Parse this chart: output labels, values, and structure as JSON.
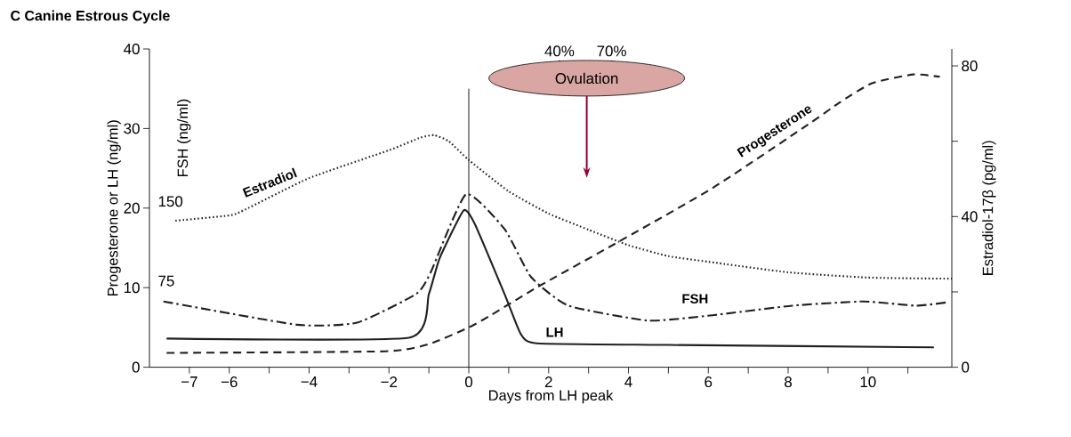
{
  "chart_data": {
    "type": "line",
    "title": "C  Canine Estrous Cycle",
    "xlabel": "Days from LH peak",
    "ylabel": "Progesterone or LH (ng/ml)",
    "y2label": "Estradiol-17β (pg/ml)",
    "y3label": "FSH (ng/ml)",
    "xlim": [
      -8,
      12.1
    ],
    "xticks": [
      {
        "value": -7,
        "label": "−7"
      },
      {
        "value": -6,
        "label": "−6"
      },
      {
        "value": -5,
        "label": null
      },
      {
        "value": -4,
        "label": "−4"
      },
      {
        "value": -3,
        "label": null
      },
      {
        "value": -2,
        "label": "−2"
      },
      {
        "value": -1,
        "label": null
      },
      0,
      {
        "value": 1,
        "label": null
      },
      2,
      {
        "value": 3,
        "label": null
      },
      4,
      {
        "value": 5,
        "label": null
      },
      6,
      {
        "value": 7,
        "label": null
      },
      8,
      {
        "value": 9,
        "label": null
      },
      10,
      {
        "value": 11,
        "label": null
      }
    ],
    "ylim": [
      0,
      40
    ],
    "yticks": [
      0,
      10,
      20,
      30,
      40
    ],
    "y2lim": [
      0,
      84.5
    ],
    "y2ticks": [
      0,
      {
        "value": 20,
        "label": null
      },
      40,
      {
        "value": 60,
        "label": null
      },
      80
    ],
    "y3lim": [
      0,
      300
    ],
    "y3ticks": [
      75,
      150
    ],
    "ref_lines": [
      {
        "axis": "x",
        "value": 0
      }
    ],
    "annotations": [
      "Ovulation",
      "40%",
      "70%"
    ],
    "series": [
      {
        "name": "Estradiol",
        "color": "#231f20",
        "line_style": "dotted",
        "axis": "y2",
        "x": [
          -7.35,
          -6,
          -5.65,
          -4,
          -2,
          -1.2,
          -0.87,
          -0.5,
          0,
          1,
          2,
          3,
          4,
          5,
          6,
          8,
          10,
          12.1
        ],
        "values": [
          38.9,
          40.3,
          41.6,
          50.2,
          57.6,
          61,
          61.6,
          60,
          55,
          46.7,
          40.8,
          36.5,
          32.4,
          29.5,
          28,
          25.2,
          23.8,
          23.5
        ]
      },
      {
        "name": "Progesterone",
        "color": "#231f20",
        "line_style": "dashed",
        "x": [
          -7.57,
          -2.1,
          -1,
          0,
          0.54,
          1.73,
          3.73,
          6.1,
          8.5,
          9.3,
          10.1,
          11.14,
          11.8
        ],
        "values": [
          1.8,
          2.0,
          2.9,
          5.0,
          6.5,
          10.1,
          15.7,
          22.5,
          30.5,
          33.3,
          35.7,
          36.8,
          36.5
        ]
      },
      {
        "name": "FSH",
        "color": "#231f20",
        "line_style": "dashdot",
        "axis": "y3",
        "x": [
          -7.65,
          -4.3,
          -2.8,
          -1.32,
          -0.96,
          -0.07,
          0.9,
          1.56,
          2.5,
          4.5,
          6.1,
          8.1,
          9.9,
          11.2,
          11.95
        ],
        "values": [
          62,
          40,
          42,
          69,
          89,
          163,
          130,
          85,
          58,
          44,
          49,
          58,
          62,
          58,
          61
        ]
      },
      {
        "name": "LH",
        "color": "#231f20",
        "line_style": "solid",
        "x": [
          -7.57,
          -1.5,
          -1.0,
          -0.73,
          -0.13,
          0.16,
          0.92,
          1.3,
          1.7,
          5,
          11.65
        ],
        "values": [
          3.6,
          3.7,
          9.2,
          13.7,
          19.7,
          17.9,
          8.9,
          4.2,
          3.0,
          2.8,
          2.5
        ]
      }
    ]
  }
}
